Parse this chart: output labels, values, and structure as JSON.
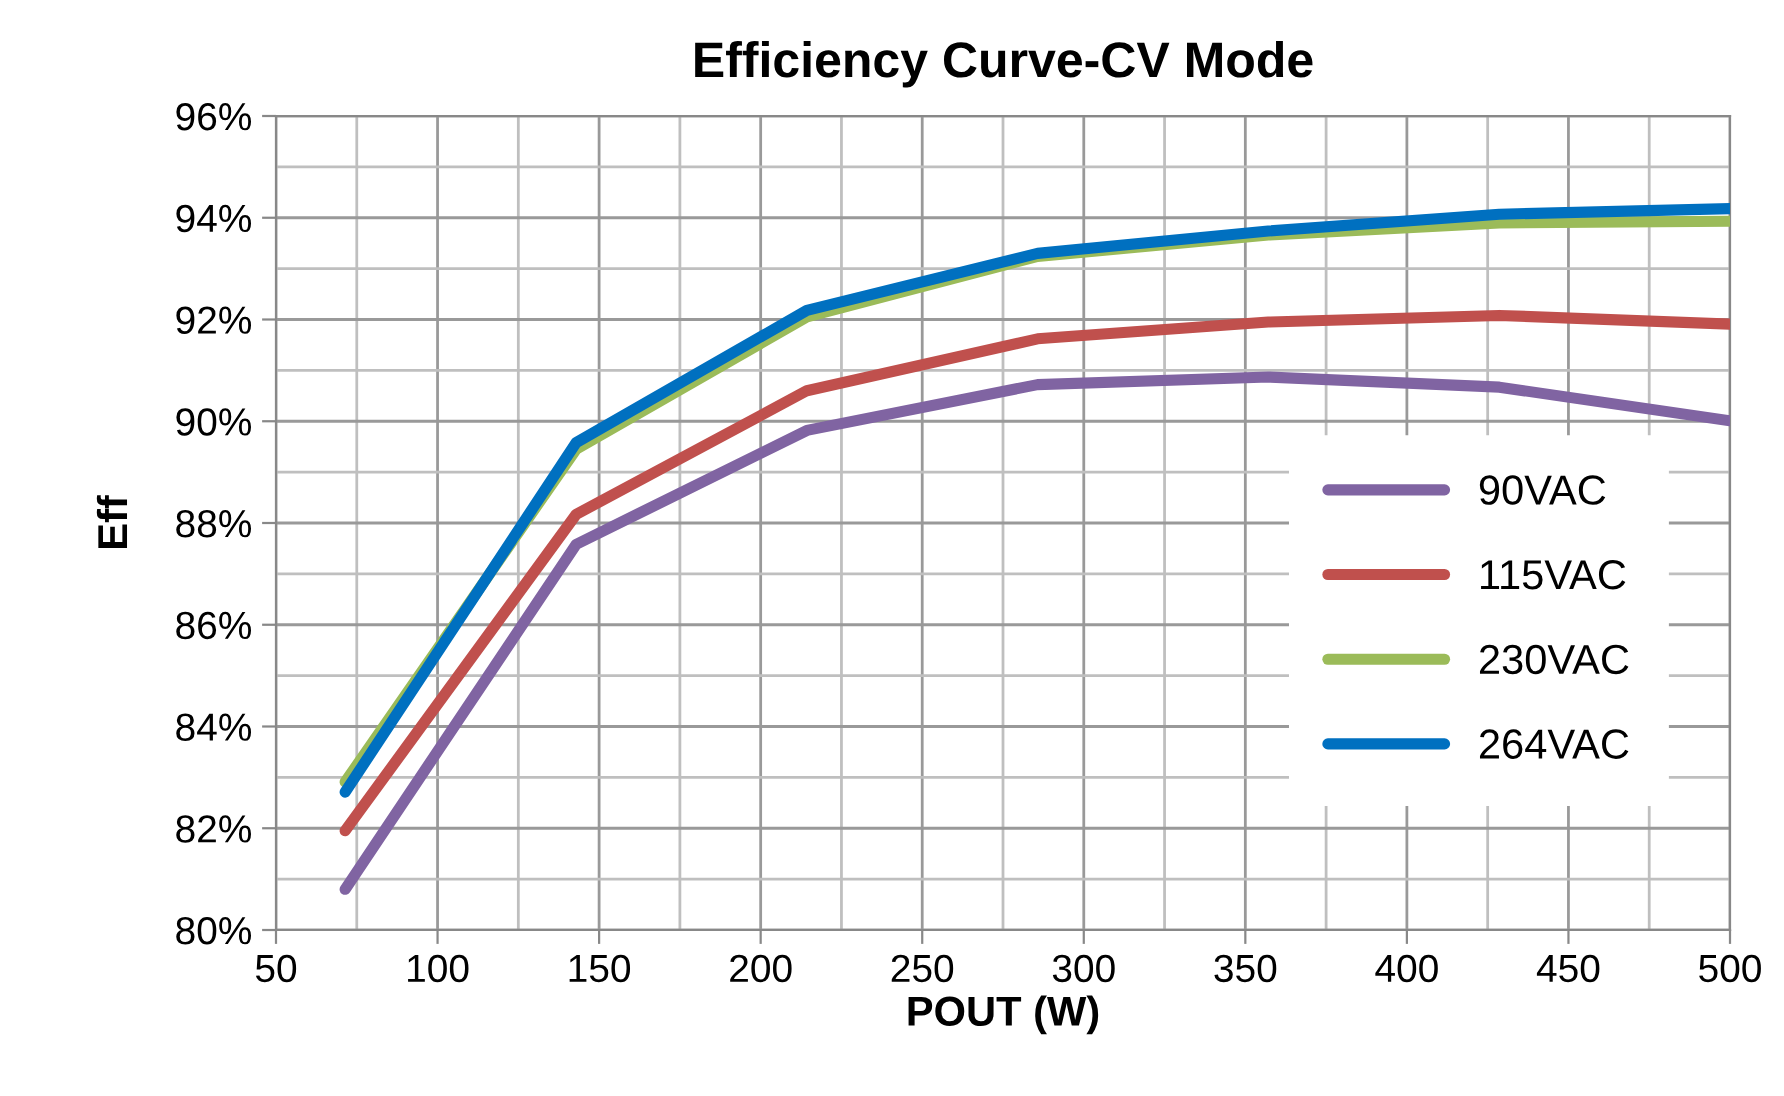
{
  "chart_data": {
    "type": "line",
    "title": "Efficiency Curve-CV Mode",
    "xlabel": "POUT (W)",
    "ylabel": "Eff",
    "x": [
      71.4,
      142.9,
      214.3,
      285.7,
      357.1,
      428.6,
      500
    ],
    "series": [
      {
        "name": "90VAC",
        "color": "#8064a2",
        "values": [
          80.8,
          87.58,
          89.82,
          90.72,
          90.87,
          90.67,
          90.01
        ]
      },
      {
        "name": "115VAC",
        "color": "#c0504d",
        "values": [
          81.95,
          88.17,
          90.6,
          91.62,
          91.95,
          92.08,
          91.91
        ]
      },
      {
        "name": "230VAC",
        "color": "#9bbb59",
        "values": [
          82.91,
          89.45,
          92.05,
          93.24,
          93.66,
          93.9,
          93.93
        ]
      },
      {
        "name": "264VAC",
        "color": "#0070c0",
        "values": [
          82.71,
          89.58,
          92.18,
          93.3,
          93.74,
          94.07,
          94.18
        ]
      }
    ],
    "xlim": [
      50,
      500
    ],
    "xticks": [
      50,
      100,
      150,
      200,
      250,
      300,
      350,
      400,
      450,
      500
    ],
    "ylim": [
      80,
      96
    ],
    "yticks": [
      {
        "value": 80,
        "label": "80%"
      },
      {
        "value": 82,
        "label": "82%"
      },
      {
        "value": 84,
        "label": "84%"
      },
      {
        "value": 86,
        "label": "86%"
      },
      {
        "value": 88,
        "label": "88%"
      },
      {
        "value": 90,
        "label": "90%"
      },
      {
        "value": 92,
        "label": "92%"
      },
      {
        "value": 94,
        "label": "94%"
      },
      {
        "value": 96,
        "label": "96%"
      }
    ],
    "grid": true,
    "legend": "right",
    "marker": "none",
    "line_style": "solid"
  }
}
